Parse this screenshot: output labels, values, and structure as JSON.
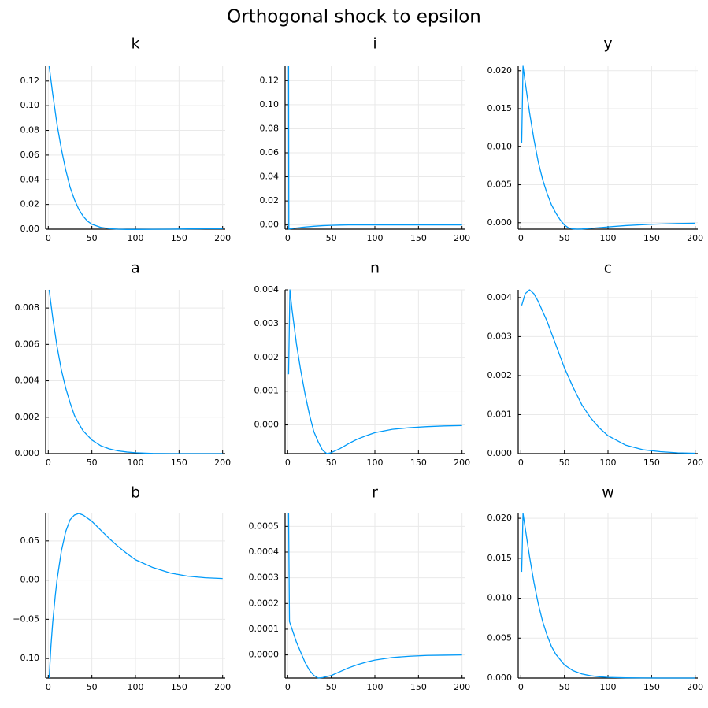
{
  "figure": {
    "title": "Orthogonal shock to epsilon"
  },
  "style": {
    "line_color": "#009af9",
    "axis_color": "#000000",
    "grid_color": "#e9e9e9"
  },
  "chart_data": [
    {
      "type": "line",
      "title": "k",
      "xlim": [
        -3,
        203
      ],
      "ylim": [
        0,
        0.132
      ],
      "xticks": [
        0,
        50,
        100,
        150,
        200
      ],
      "xtick_labels": [
        "0",
        "50",
        "100",
        "150",
        "200"
      ],
      "yticks": [
        0,
        0.02,
        0.04,
        0.06,
        0.08,
        0.1,
        0.12
      ],
      "ytick_labels": [
        "0.00",
        "0.02",
        "0.04",
        "0.06",
        "0.08",
        "0.10",
        "0.12"
      ],
      "grid": true,
      "legend": "none",
      "series": [
        {
          "x": [
            1,
            5,
            10,
            15,
            20,
            25,
            30,
            35,
            40,
            45,
            50,
            60,
            70,
            80,
            90,
            100,
            120,
            140,
            160,
            180,
            200
          ],
          "y": [
            0.132,
            0.11,
            0.085,
            0.065,
            0.048,
            0.034,
            0.024,
            0.016,
            0.0105,
            0.0065,
            0.004,
            0.0015,
            0.0004,
            0.0,
            -0.0002,
            -0.0002,
            -0.0001,
            0.0,
            0.0002,
            0.0003,
            0.0003
          ]
        }
      ]
    },
    {
      "type": "line",
      "title": "i",
      "xlim": [
        -3,
        203
      ],
      "ylim": [
        -0.0035,
        0.132
      ],
      "xticks": [
        0,
        50,
        100,
        150,
        200
      ],
      "xtick_labels": [
        "0",
        "50",
        "100",
        "150",
        "200"
      ],
      "yticks": [
        0,
        0.02,
        0.04,
        0.06,
        0.08,
        0.1,
        0.12
      ],
      "ytick_labels": [
        "0.00",
        "0.02",
        "0.04",
        "0.06",
        "0.08",
        "0.10",
        "0.12"
      ],
      "grid": true,
      "legend": "none",
      "series": [
        {
          "x": [
            1,
            1.3,
            2,
            5,
            10,
            20,
            30,
            40,
            50,
            60,
            70,
            80,
            100,
            120,
            150,
            200
          ],
          "y": [
            0.132,
            -0.0035,
            -0.0033,
            -0.003,
            -0.0025,
            -0.0017,
            -0.0011,
            -0.0006,
            -0.0003,
            -0.0001,
            0.0,
            0.0,
            0.0,
            0.0,
            0.0,
            0.0
          ]
        }
      ]
    },
    {
      "type": "line",
      "title": "y",
      "xlim": [
        -3,
        203
      ],
      "ylim": [
        -0.00085,
        0.0206
      ],
      "xticks": [
        0,
        50,
        100,
        150,
        200
      ],
      "xtick_labels": [
        "0",
        "50",
        "100",
        "150",
        "200"
      ],
      "yticks": [
        0,
        0.005,
        0.01,
        0.015,
        0.02
      ],
      "ytick_labels": [
        "0.000",
        "0.005",
        "0.010",
        "0.015",
        "0.020"
      ],
      "grid": true,
      "legend": "none",
      "series": [
        {
          "x": [
            1,
            2.5,
            5,
            10,
            15,
            20,
            25,
            30,
            35,
            40,
            45,
            50,
            55,
            60,
            65,
            70,
            80,
            100,
            120,
            150,
            180,
            200
          ],
          "y": [
            0.0105,
            0.0206,
            0.0185,
            0.0145,
            0.011,
            0.008,
            0.0057,
            0.0039,
            0.0024,
            0.0013,
            0.0004,
            -0.0003,
            -0.0007,
            -0.00082,
            -0.00085,
            -0.00083,
            -0.00075,
            -0.00055,
            -0.00038,
            -0.0002,
            -0.0001,
            -6e-05
          ]
        }
      ]
    },
    {
      "type": "line",
      "title": "a",
      "xlim": [
        -3,
        203
      ],
      "ylim": [
        0,
        0.009
      ],
      "xticks": [
        0,
        50,
        100,
        150,
        200
      ],
      "xtick_labels": [
        "0",
        "50",
        "100",
        "150",
        "200"
      ],
      "yticks": [
        0,
        0.002,
        0.004,
        0.006,
        0.008
      ],
      "ytick_labels": [
        "0.000",
        "0.002",
        "0.004",
        "0.006",
        "0.008"
      ],
      "grid": true,
      "legend": "none",
      "series": [
        {
          "x": [
            1,
            5,
            10,
            15,
            20,
            25,
            30,
            35,
            40,
            50,
            60,
            70,
            80,
            90,
            100,
            120,
            140,
            160,
            180,
            200
          ],
          "y": [
            0.009,
            0.0075,
            0.0059,
            0.0046,
            0.0036,
            0.0028,
            0.0021,
            0.00165,
            0.00125,
            0.00075,
            0.00044,
            0.00026,
            0.00015,
            9e-05,
            5e-05,
            1e-05,
            0.0,
            0.0,
            0.0,
            0.0
          ]
        }
      ]
    },
    {
      "type": "line",
      "title": "n",
      "xlim": [
        -3,
        203
      ],
      "ylim": [
        -0.00085,
        0.004
      ],
      "xticks": [
        0,
        50,
        100,
        150,
        200
      ],
      "xtick_labels": [
        "0",
        "50",
        "100",
        "150",
        "200"
      ],
      "yticks": [
        0,
        0.001,
        0.002,
        0.003,
        0.004
      ],
      "ytick_labels": [
        "0.000",
        "0.001",
        "0.002",
        "0.003",
        "0.004"
      ],
      "grid": true,
      "legend": "none",
      "series": [
        {
          "x": [
            1,
            2.5,
            5,
            10,
            15,
            20,
            25,
            30,
            35,
            40,
            45,
            50,
            60,
            70,
            80,
            90,
            100,
            120,
            140,
            160,
            180,
            200
          ],
          "y": [
            0.0015,
            0.004,
            0.0034,
            0.0024,
            0.0016,
            0.0009,
            0.0003,
            -0.0002,
            -0.0005,
            -0.00075,
            -0.00085,
            -0.00082,
            -0.0007,
            -0.00055,
            -0.00042,
            -0.00032,
            -0.00023,
            -0.00013,
            -8e-05,
            -5e-05,
            -3e-05,
            -2e-05
          ]
        }
      ]
    },
    {
      "type": "line",
      "title": "c",
      "xlim": [
        -3,
        203
      ],
      "ylim": [
        0,
        0.0042
      ],
      "xticks": [
        0,
        50,
        100,
        150,
        200
      ],
      "xtick_labels": [
        "0",
        "50",
        "100",
        "150",
        "200"
      ],
      "yticks": [
        0,
        0.001,
        0.002,
        0.003,
        0.004
      ],
      "ytick_labels": [
        "0.000",
        "0.001",
        "0.002",
        "0.003",
        "0.004"
      ],
      "grid": true,
      "legend": "none",
      "series": [
        {
          "x": [
            1,
            5,
            10,
            15,
            20,
            30,
            40,
            50,
            60,
            70,
            80,
            90,
            100,
            120,
            140,
            160,
            180,
            200
          ],
          "y": [
            0.0038,
            0.0041,
            0.0042,
            0.0041,
            0.0039,
            0.0034,
            0.0028,
            0.0022,
            0.0017,
            0.00125,
            0.00092,
            0.00066,
            0.00046,
            0.00022,
            0.0001,
            5e-05,
            2e-05,
            1e-05
          ]
        }
      ]
    },
    {
      "type": "line",
      "title": "b",
      "xlim": [
        -3,
        203
      ],
      "ylim": [
        -0.125,
        0.085
      ],
      "xticks": [
        0,
        50,
        100,
        150,
        200
      ],
      "xtick_labels": [
        "0",
        "50",
        "100",
        "150",
        "200"
      ],
      "yticks": [
        -0.1,
        -0.05,
        0,
        0.05
      ],
      "ytick_labels": [
        "−0.10",
        "−0.05",
        "0.00",
        "0.05"
      ],
      "grid": true,
      "legend": "none",
      "series": [
        {
          "x": [
            1,
            3,
            5,
            8,
            10,
            15,
            20,
            25,
            30,
            35,
            40,
            50,
            60,
            70,
            80,
            90,
            100,
            120,
            140,
            160,
            180,
            200
          ],
          "y": [
            -0.125,
            -0.085,
            -0.055,
            -0.02,
            0.0,
            0.037,
            0.062,
            0.077,
            0.083,
            0.085,
            0.083,
            0.075,
            0.064,
            0.053,
            0.043,
            0.034,
            0.026,
            0.016,
            0.009,
            0.005,
            0.003,
            0.002
          ]
        }
      ]
    },
    {
      "type": "line",
      "title": "r",
      "xlim": [
        -3,
        203
      ],
      "ylim": [
        -9e-05,
        0.00055
      ],
      "xticks": [
        0,
        50,
        100,
        150,
        200
      ],
      "xtick_labels": [
        "0",
        "50",
        "100",
        "150",
        "200"
      ],
      "yticks": [
        0,
        0.0001,
        0.0002,
        0.0003,
        0.0004,
        0.0005
      ],
      "ytick_labels": [
        "0.0000",
        "0.0001",
        "0.0002",
        "0.0003",
        "0.0004",
        "0.0005"
      ],
      "grid": true,
      "legend": "none",
      "series": [
        {
          "x": [
            1,
            2,
            5,
            10,
            15,
            20,
            25,
            30,
            35,
            40,
            50,
            60,
            70,
            80,
            90,
            100,
            120,
            140,
            160,
            180,
            200
          ],
          "y": [
            0.00055,
            0.00013,
            0.0001,
            5e-05,
            1e-05,
            -3e-05,
            -6e-05,
            -8e-05,
            -9e-05,
            -8.8e-05,
            -8e-05,
            -6.5e-05,
            -5e-05,
            -3.8e-05,
            -2.8e-05,
            -2e-05,
            -1e-05,
            -5e-06,
            -2e-06,
            -1e-06,
            0.0
          ]
        }
      ]
    },
    {
      "type": "line",
      "title": "w",
      "xlim": [
        -3,
        203
      ],
      "ylim": [
        0,
        0.0206
      ],
      "xticks": [
        0,
        50,
        100,
        150,
        200
      ],
      "xtick_labels": [
        "0",
        "50",
        "100",
        "150",
        "200"
      ],
      "yticks": [
        0,
        0.005,
        0.01,
        0.015,
        0.02
      ],
      "ytick_labels": [
        "0.000",
        "0.005",
        "0.010",
        "0.015",
        "0.020"
      ],
      "grid": true,
      "legend": "none",
      "series": [
        {
          "x": [
            1,
            2.5,
            5,
            10,
            15,
            20,
            25,
            30,
            35,
            40,
            50,
            60,
            70,
            80,
            90,
            100,
            120,
            140,
            160,
            180,
            200
          ],
          "y": [
            0.0133,
            0.0206,
            0.0188,
            0.0152,
            0.012,
            0.0093,
            0.0071,
            0.0054,
            0.004,
            0.003,
            0.00165,
            0.00092,
            0.00052,
            0.00029,
            0.00016,
            9e-05,
            3e-05,
            1e-05,
            0.0,
            0.0,
            0.0
          ]
        }
      ]
    }
  ]
}
